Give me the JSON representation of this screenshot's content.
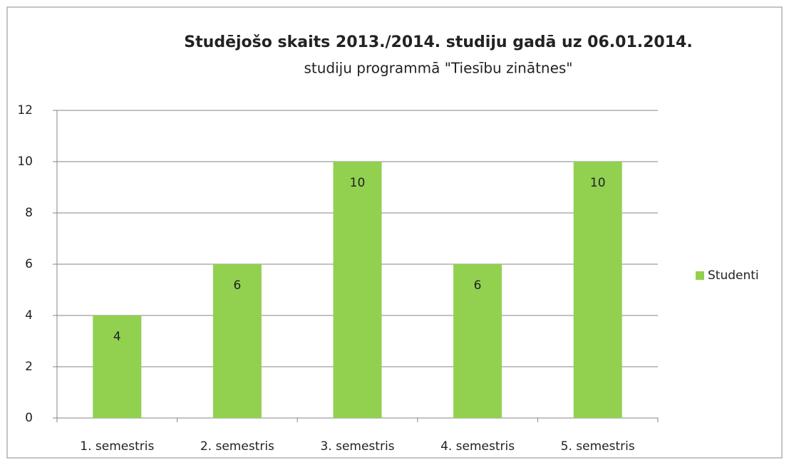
{
  "chart_data": {
    "type": "bar",
    "title": "Studējošo skaits 2013./2014. studiju  gadā uz 06.01.2014.",
    "subtitle": "studiju programmā \"Tiesību zinātnes\"",
    "categories": [
      "1. semestris",
      "2. semestris",
      "3. semestris",
      "4. semestris",
      "5. semestris"
    ],
    "series": [
      {
        "name": "Studenti",
        "color": "#92d050",
        "values": [
          4,
          6,
          10,
          6,
          10
        ]
      }
    ],
    "ylim": [
      0,
      12
    ],
    "yticks": [
      0,
      2,
      4,
      6,
      8,
      10,
      12
    ],
    "grid": true,
    "legend": "right"
  }
}
